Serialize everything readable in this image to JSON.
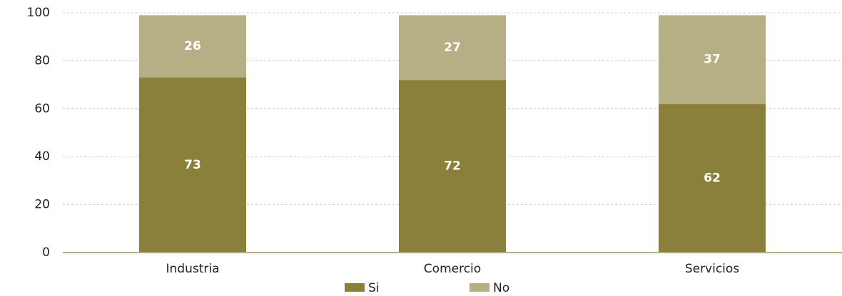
{
  "chart_data": {
    "type": "stacked_bar",
    "categories": [
      "Industria",
      "Comercio",
      "Servicios"
    ],
    "series": [
      {
        "name": "Si",
        "color": "#8b7f3c",
        "values": [
          73,
          72,
          62
        ]
      },
      {
        "name": "No",
        "color": "#b6ae84",
        "values": [
          26,
          27,
          37
        ]
      }
    ],
    "ylim": [
      0,
      100
    ],
    "yticks": [
      0,
      20,
      40,
      60,
      80,
      100
    ],
    "grid": true,
    "legend": "bottom"
  }
}
